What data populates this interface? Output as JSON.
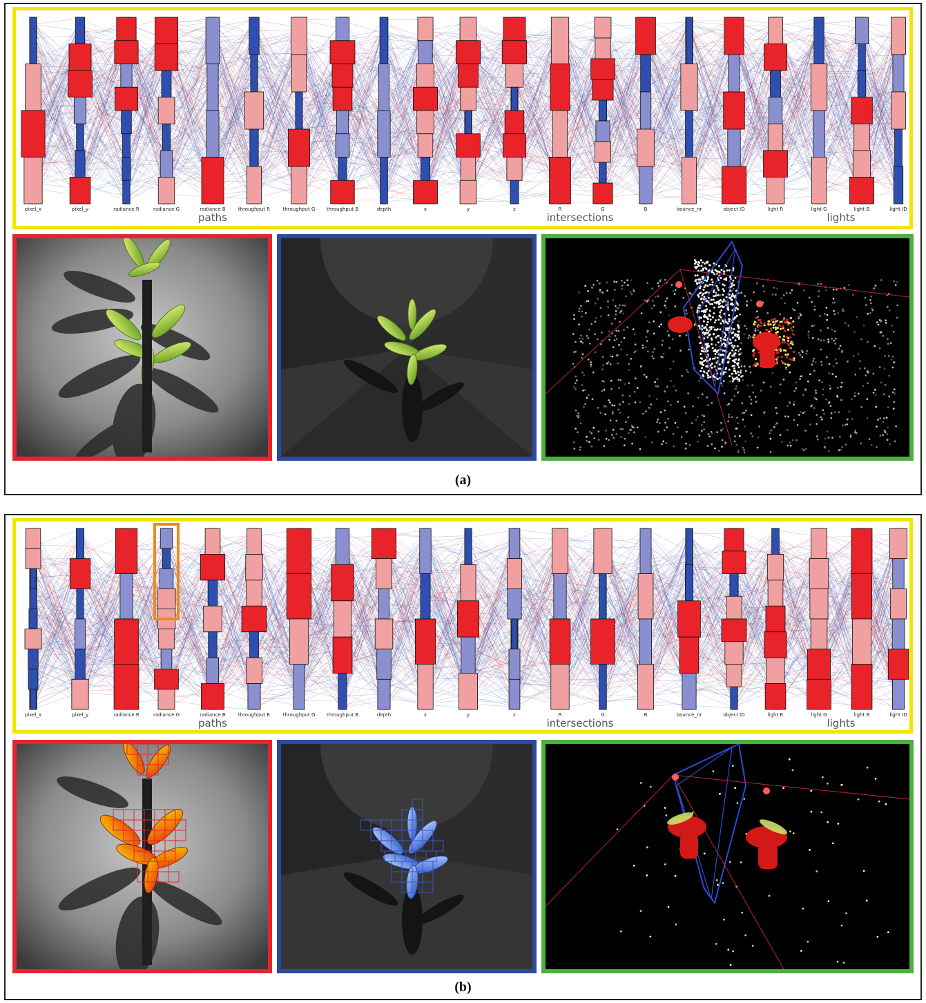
{
  "colors": {
    "frame_yellow": "#f2e600",
    "view_red": "#e3262e",
    "view_blue": "#2b4aa0",
    "view_green": "#4caf3f",
    "line_blue": "#2f4fb0",
    "line_red": "#e01818",
    "highlight_orange": "#f08a1c"
  },
  "axes": [
    {
      "group": "paths",
      "label": "pixel_x"
    },
    {
      "group": "paths",
      "label": "pixel_y"
    },
    {
      "group": "paths",
      "label": "radiance  R"
    },
    {
      "group": "paths",
      "label": "radiance  G"
    },
    {
      "group": "paths",
      "label": "radiance  B"
    },
    {
      "group": "paths",
      "label": "throughput  R"
    },
    {
      "group": "paths",
      "label": "throughput  G"
    },
    {
      "group": "paths",
      "label": "throughput  B"
    },
    {
      "group": "paths",
      "label": "depth"
    },
    {
      "group": "intersections",
      "label": "x"
    },
    {
      "group": "intersections",
      "label": "y"
    },
    {
      "group": "intersections",
      "label": "z"
    },
    {
      "group": "intersections",
      "label": "R"
    },
    {
      "group": "intersections",
      "label": "G"
    },
    {
      "group": "intersections",
      "label": "B"
    },
    {
      "group": "intersections",
      "label": "bounce_nr"
    },
    {
      "group": "intersections",
      "label": "object  ID"
    },
    {
      "group": "lights",
      "label": "light  R"
    },
    {
      "group": "lights",
      "label": "light  G"
    },
    {
      "group": "lights",
      "label": "light  B"
    },
    {
      "group": "lights",
      "label": "light  ID"
    }
  ],
  "groups": [
    {
      "label": "paths"
    },
    {
      "label": "intersections"
    },
    {
      "label": "lights"
    }
  ],
  "panels": [
    {
      "caption": "(a)",
      "views": [
        {
          "name": "rendered-image-view",
          "icon": "plant-render"
        },
        {
          "name": "scene-render-view",
          "icon": "spotlight-render"
        },
        {
          "name": "3d-scene-view",
          "icon": "point-cloud"
        }
      ]
    },
    {
      "caption": "(b)",
      "views": [
        {
          "name": "rendered-image-view",
          "icon": "plant-render-highlighted"
        },
        {
          "name": "scene-render-view",
          "icon": "spotlight-render-highlighted"
        },
        {
          "name": "3d-scene-view",
          "icon": "point-cloud-filtered"
        }
      ]
    }
  ]
}
